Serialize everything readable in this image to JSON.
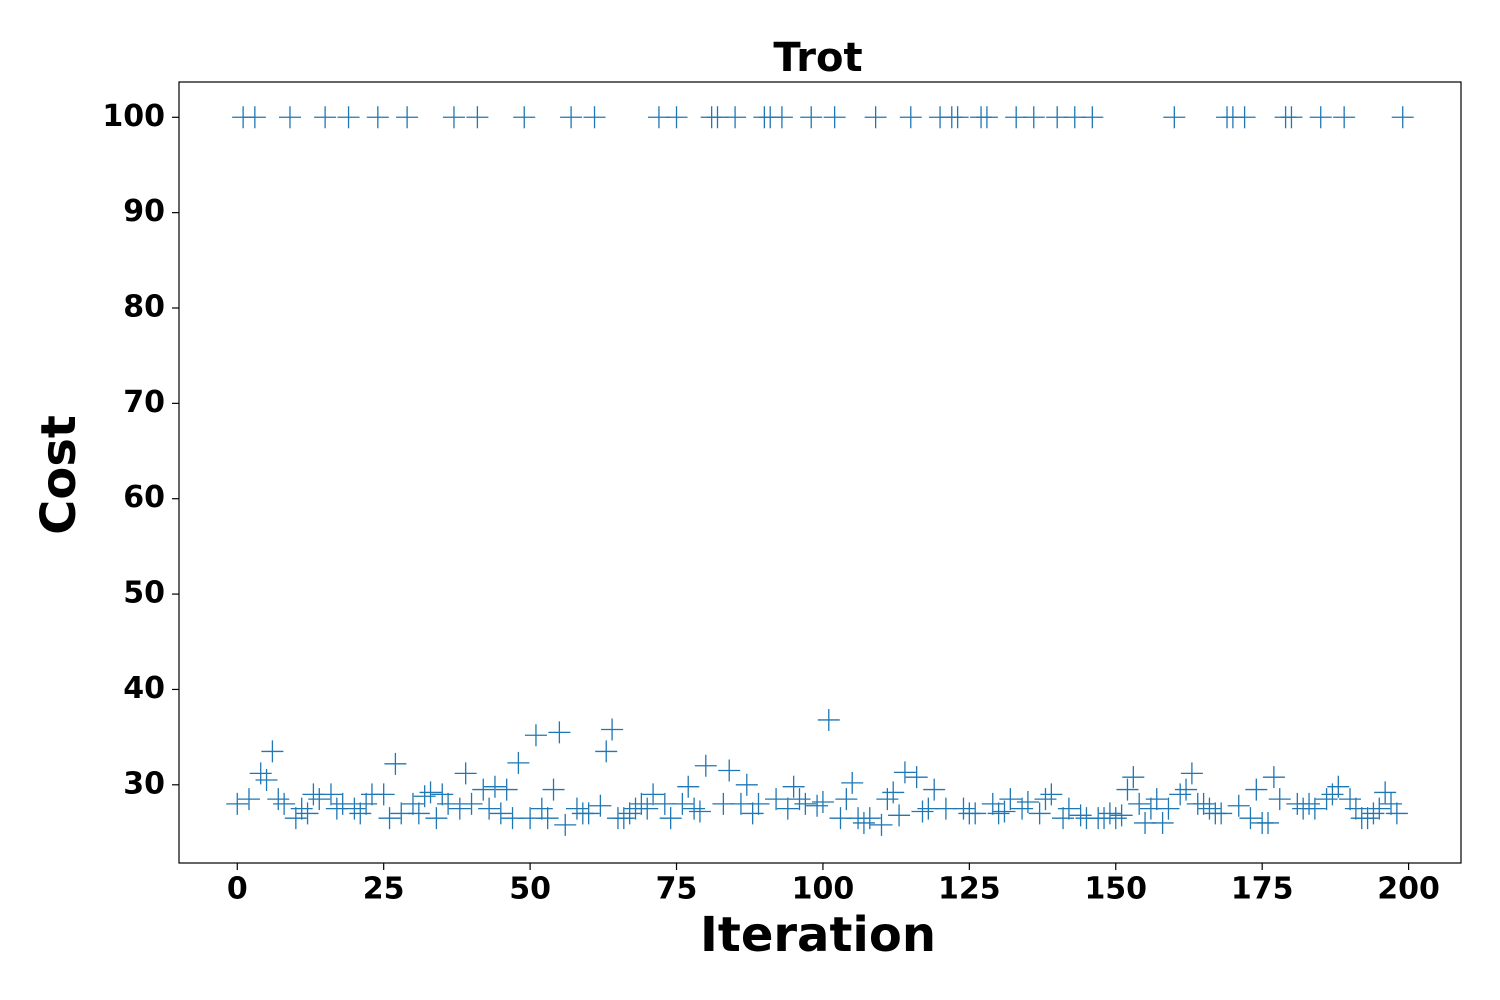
{
  "chart_data": {
    "type": "scatter",
    "title": "Trot",
    "x_label": "Iteration",
    "y_label": "Cost",
    "series": [
      {
        "name": "Cost",
        "color": "#1f77b4",
        "x": [
          0,
          1,
          2,
          3,
          4,
          5,
          6,
          7,
          8,
          9,
          10,
          11,
          12,
          13,
          14,
          15,
          16,
          17,
          18,
          19,
          20,
          21,
          22,
          23,
          24,
          25,
          26,
          27,
          28,
          29,
          30,
          31,
          32,
          33,
          34,
          35,
          36,
          37,
          38,
          39,
          40,
          41,
          42,
          43,
          44,
          45,
          46,
          47,
          48,
          49,
          50,
          51,
          52,
          53,
          54,
          55,
          56,
          57,
          58,
          59,
          60,
          61,
          62,
          63,
          64,
          65,
          66,
          67,
          68,
          69,
          70,
          71,
          72,
          73,
          74,
          75,
          76,
          77,
          78,
          79,
          80,
          81,
          82,
          83,
          84,
          85,
          86,
          87,
          88,
          89,
          90,
          91,
          92,
          93,
          94,
          95,
          96,
          97,
          98,
          99,
          100,
          101,
          102,
          103,
          104,
          105,
          106,
          107,
          108,
          109,
          110,
          111,
          112,
          113,
          114,
          115,
          116,
          117,
          118,
          119,
          120,
          121,
          122,
          123,
          124,
          125,
          126,
          127,
          128,
          129,
          130,
          131,
          132,
          133,
          134,
          135,
          136,
          137,
          138,
          139,
          140,
          141,
          142,
          143,
          144,
          145,
          146,
          147,
          148,
          149,
          150,
          151,
          152,
          153,
          154,
          155,
          156,
          157,
          158,
          159,
          160,
          161,
          162,
          163,
          164,
          165,
          166,
          167,
          168,
          169,
          170,
          171,
          172,
          173,
          174,
          175,
          176,
          177,
          178,
          179,
          180,
          181,
          182,
          183,
          184,
          185,
          186,
          187,
          188,
          189,
          190,
          191,
          192,
          193,
          194,
          195,
          196,
          197,
          198,
          199
        ],
        "values": [
          28,
          100,
          28.5,
          100,
          31.2,
          30.5,
          33.5,
          28.5,
          28,
          100,
          26.5,
          27.5,
          27,
          29,
          28.5,
          100,
          29,
          27.5,
          28,
          100,
          27.5,
          27,
          28,
          29,
          100,
          29,
          26.5,
          32.2,
          27,
          100,
          28,
          27,
          28.8,
          29.2,
          26.5,
          29,
          28,
          100,
          27.5,
          31.2,
          28,
          100,
          29.5,
          27.5,
          29.8,
          27,
          29.5,
          26.5,
          32.3,
          100,
          26.5,
          35.2,
          27.5,
          26.5,
          29.5,
          35.5,
          25.8,
          100,
          27.5,
          27,
          27,
          100,
          27.8,
          33.5,
          35.8,
          26.5,
          26.5,
          27,
          27.5,
          28,
          27.5,
          29,
          100,
          28,
          26.5,
          100,
          28,
          29.8,
          27.5,
          27.2,
          32,
          100,
          100,
          28,
          31.5,
          100,
          28,
          30,
          27,
          28,
          100,
          100,
          28.5,
          100,
          27.5,
          29.8,
          28.5,
          28,
          100,
          27.8,
          28.2,
          36.8,
          100,
          26.5,
          28.5,
          30.2,
          26.5,
          26,
          26.5,
          100,
          25.8,
          28.5,
          29.2,
          26.8,
          31.3,
          100,
          30.8,
          27.2,
          27.5,
          29.5,
          100,
          27.5,
          100,
          100,
          27.5,
          27,
          27,
          100,
          100,
          28,
          27,
          27.2,
          28.5,
          100,
          27.5,
          28.2,
          100,
          27,
          28.5,
          29,
          100,
          26.5,
          27.5,
          100,
          26.8,
          26.5,
          100,
          26.5,
          26.5,
          27,
          26.5,
          26.8,
          29.5,
          30.8,
          28,
          26,
          27.5,
          28.5,
          26,
          27.5,
          100,
          29,
          29.5,
          31.2,
          28,
          28,
          27.5,
          27,
          27,
          100,
          100,
          27.8,
          100,
          26.5,
          29.5,
          26,
          26,
          30.8,
          28.5,
          100,
          100,
          28,
          27.5,
          28,
          27.5,
          100,
          28.5,
          29,
          29.8,
          100,
          28.5,
          27.5,
          26.5,
          26.5,
          27,
          27.5,
          29.2,
          28,
          27,
          100
        ]
      }
    ],
    "xlim": [
      -9.95,
      208.95
    ],
    "ylim": [
      21.8,
      103.7
    ],
    "xticks": [
      0,
      25,
      50,
      75,
      100,
      125,
      150,
      175,
      200
    ],
    "yticks": [
      30,
      40,
      50,
      60,
      70,
      80,
      90,
      100
    ]
  }
}
